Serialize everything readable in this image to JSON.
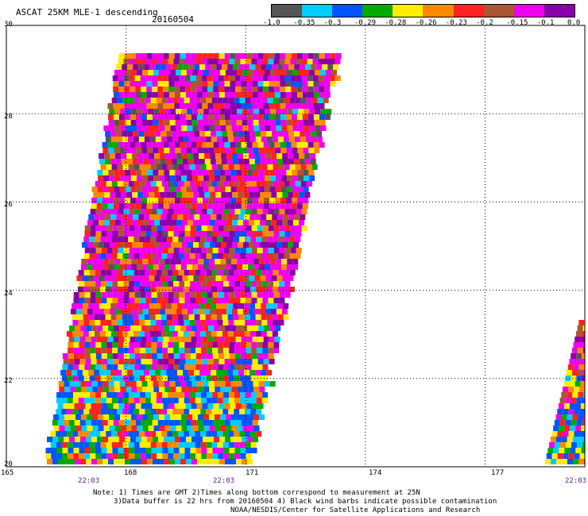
{
  "header": {
    "title": "ASCAT 25KM MLE-1 descending",
    "date": "20160504"
  },
  "colorbar": {
    "colors": [
      "#555555",
      "#00ccff",
      "#0055ff",
      "#00aa00",
      "#ffee00",
      "#ff8800",
      "#ff2222",
      "#aa5533",
      "#ee00ee",
      "#8800aa"
    ],
    "labels": [
      "-1.0",
      "-0.35",
      "-0.3",
      "-0.29",
      "-0.28",
      "-0.26",
      "-0.23",
      "-0.2",
      "-0.15",
      "-0.1",
      "0.0"
    ]
  },
  "axes": {
    "y_ticks": [
      "30",
      "28",
      "26",
      "24",
      "22",
      "20"
    ],
    "x_ticks": [
      "165",
      "168",
      "171",
      "174",
      "177"
    ],
    "times": [
      "22:03",
      "22:03",
      "22:03"
    ]
  },
  "notes": {
    "line1": "Note: 1) Times are GMT 2)Times along bottom correspond to measurement at 25N",
    "line2": "3)Data buffer is 22 hrs from 20160504 4) Black wind barbs indicate possible contamination",
    "line3": "NOAA/NESDIS/Center for Satellite Applications and Research"
  },
  "map": {
    "lon_range": [
      165,
      179.5
    ],
    "lat_range": [
      20,
      30
    ]
  }
}
